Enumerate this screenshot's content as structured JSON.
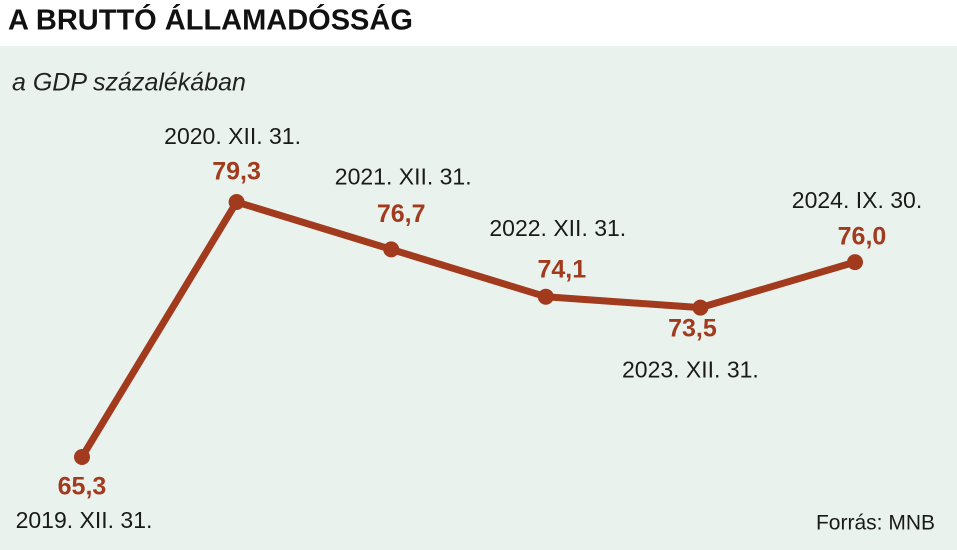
{
  "chart_data": {
    "type": "line",
    "title": "A BRUTTÓ ÁLLAMADÓSSÁG",
    "subtitle": "a GDP százalékában",
    "source": "Forrás: MNB",
    "categories": [
      "2019. XII. 31.",
      "2020. XII. 31.",
      "2021. XII. 31.",
      "2022. XII. 31.",
      "2023. XII. 31.",
      "2024. IX. 30."
    ],
    "values": [
      65.3,
      79.3,
      76.7,
      74.1,
      73.5,
      76.0
    ],
    "value_labels": [
      "65,3",
      "79,3",
      "76,7",
      "74,1",
      "73,5",
      "76,0"
    ],
    "color": "#a23b1e"
  }
}
